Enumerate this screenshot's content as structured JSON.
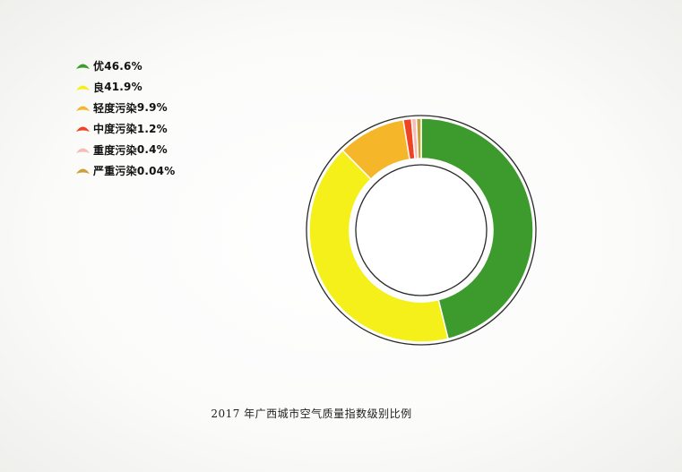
{
  "chart_data": {
    "type": "pie",
    "title": "2017 年广西城市空气质量指数级别比例",
    "legend_position": "top-left",
    "categories": [
      "优",
      "良",
      "轻度污染",
      "中度污染",
      "重度污染",
      "严重污染"
    ],
    "values": [
      46.6,
      41.9,
      9.9,
      1.2,
      0.4,
      0.04
    ],
    "value_labels": [
      "46.6%",
      "41.9%",
      "9.9%",
      "1.2%",
      "0.4%",
      "0.04%"
    ],
    "colors": [
      "#3c9b2c",
      "#f5f01a",
      "#f6b629",
      "#ef4323",
      "#f6bcb8",
      "#caa23a"
    ]
  }
}
